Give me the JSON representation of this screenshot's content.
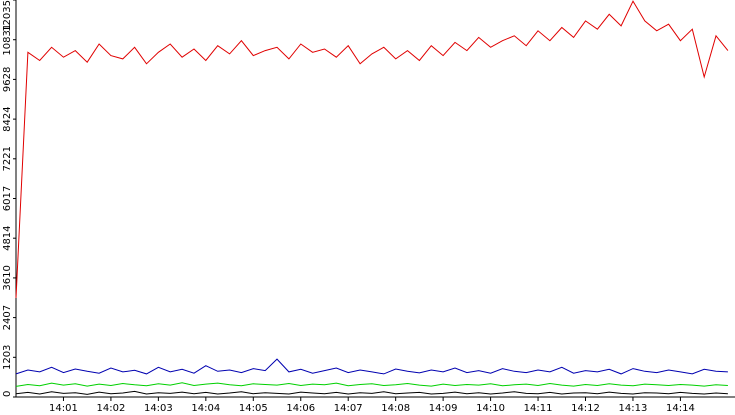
{
  "chart_data": {
    "type": "line",
    "x": [
      840,
      840.25,
      840.5,
      840.75,
      841,
      841.25,
      841.5,
      841.75,
      842,
      842.25,
      842.5,
      842.75,
      843,
      843.25,
      843.5,
      843.75,
      844,
      844.25,
      844.5,
      844.75,
      845,
      845.25,
      845.5,
      845.75,
      846,
      846.25,
      846.5,
      846.75,
      847,
      847.25,
      847.5,
      847.75,
      848,
      848.25,
      848.5,
      848.75,
      849,
      849.25,
      849.5,
      849.75,
      850,
      850.25,
      850.5,
      850.75,
      851,
      851.25,
      851.5,
      851.75,
      852,
      852.25,
      852.5,
      852.75,
      853,
      853.25,
      853.5,
      853.75,
      854,
      854.25,
      854.5,
      854.75,
      855
    ],
    "series": [
      {
        "color": "#e00000",
        "values": [
          3000,
          10450,
          10200,
          10600,
          10300,
          10500,
          10150,
          10700,
          10350,
          10250,
          10600,
          10100,
          10450,
          10700,
          10300,
          10550,
          10200,
          10650,
          10400,
          10800,
          10350,
          10500,
          10600,
          10250,
          10700,
          10450,
          10550,
          10300,
          10650,
          10100,
          10400,
          10600,
          10250,
          10500,
          10200,
          10650,
          10350,
          10750,
          10500,
          10900,
          10600,
          10800,
          10950,
          10650,
          11100,
          10800,
          11200,
          10900,
          11400,
          11150,
          11600,
          11250,
          12000,
          11400,
          11100,
          11300,
          10800,
          11150,
          9700,
          10950,
          10500
        ]
      },
      {
        "color": "#0000b0",
        "values": [
          700,
          820,
          760,
          900,
          740,
          850,
          780,
          720,
          880,
          760,
          810,
          700,
          900,
          760,
          840,
          720,
          950,
          780,
          820,
          740,
          860,
          800,
          1150,
          760,
          840,
          720,
          800,
          880,
          740,
          820,
          760,
          700,
          850,
          780,
          730,
          820,
          760,
          880,
          740,
          800,
          720,
          860,
          780,
          740,
          820,
          760,
          900,
          720,
          800,
          760,
          840,
          700,
          860,
          780,
          740,
          820,
          760,
          700,
          840,
          780,
          760
        ]
      },
      {
        "color": "#00d000",
        "values": [
          320,
          380,
          340,
          420,
          360,
          400,
          330,
          390,
          350,
          410,
          370,
          340,
          400,
          360,
          430,
          350,
          390,
          420,
          370,
          340,
          400,
          380,
          360,
          410,
          350,
          390,
          370,
          420,
          340,
          380,
          400,
          350,
          370,
          410,
          360,
          330,
          390,
          350,
          380,
          360,
          400,
          340,
          370,
          390,
          350,
          410,
          360,
          330,
          380,
          350,
          400,
          360,
          340,
          390,
          370,
          350,
          380,
          360,
          330,
          370,
          350
        ]
      },
      {
        "color": "#000000",
        "values": [
          100,
          140,
          90,
          160,
          110,
          130,
          80,
          150,
          100,
          120,
          170,
          90,
          130,
          110,
          150,
          100,
          140,
          90,
          120,
          160,
          100,
          130,
          110,
          90,
          150,
          120,
          100,
          140,
          90,
          130,
          110,
          160,
          100,
          120,
          140,
          90,
          110,
          150,
          100,
          130,
          90,
          120,
          160,
          110,
          100,
          140,
          90,
          120,
          130,
          100,
          150,
          110,
          90,
          130,
          120,
          100,
          140,
          110,
          90,
          120,
          100
        ]
      }
    ],
    "xlim": [
      840,
      855.15
    ],
    "xticks": [
      {
        "value": 841,
        "label": "14:01"
      },
      {
        "value": 842,
        "label": "14:02"
      },
      {
        "value": 843,
        "label": "14:03"
      },
      {
        "value": 844,
        "label": "14:04"
      },
      {
        "value": 845,
        "label": "14:05"
      },
      {
        "value": 846,
        "label": "14:06"
      },
      {
        "value": 847,
        "label": "14:07"
      },
      {
        "value": 848,
        "label": "14:08"
      },
      {
        "value": 849,
        "label": "14:09"
      },
      {
        "value": 850,
        "label": "14:10"
      },
      {
        "value": 851,
        "label": "14:11"
      },
      {
        "value": 852,
        "label": "14:12"
      },
      {
        "value": 853,
        "label": "14:13"
      },
      {
        "value": 854,
        "label": "14:14"
      }
    ],
    "ylim": [
      0,
      12035
    ],
    "yticks": [
      0,
      1203,
      2407,
      3610,
      4814,
      6017,
      7221,
      8424,
      9628,
      10831,
      12035
    ]
  }
}
